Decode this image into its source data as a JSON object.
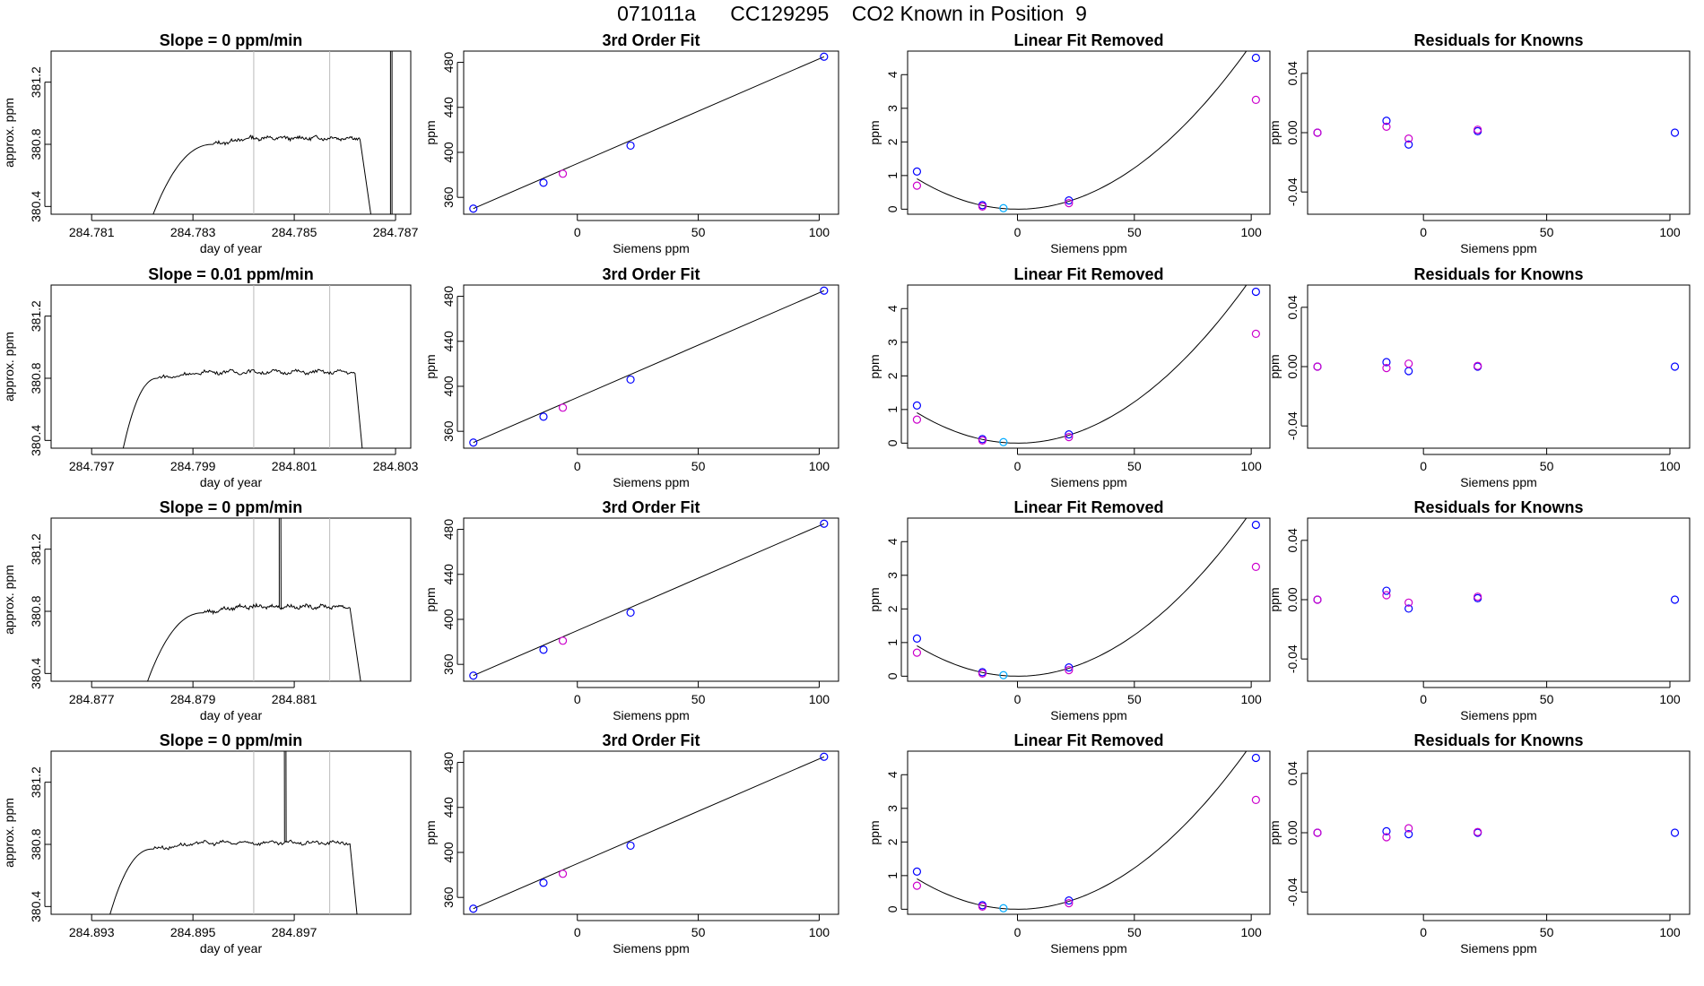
{
  "figure": {
    "title": "071011a      CC129295    CO2 Known in Position  9",
    "colors": {
      "line": "#000000",
      "known": "#0000ff",
      "second": "#cc00cc",
      "mid": "#00aaff",
      "guide": "#bbbbbb",
      "text": "#000000"
    }
  },
  "chart_data": [
    {
      "type": "line",
      "panel": "time-series",
      "row": 1,
      "title": "Slope =  0  ppm/min",
      "xlabel": "day of year",
      "ylabel": "approx. ppm",
      "xlim": [
        284.7802,
        284.7873
      ],
      "ylim": [
        380.35,
        381.4
      ],
      "xticks": [
        284.781,
        284.783,
        284.785,
        284.787
      ],
      "xtick_labels": [
        "284.781",
        "284.783",
        "284.785",
        "284.787"
      ],
      "yticks": [
        380.4,
        380.8,
        381.2
      ],
      "ytick_labels": [
        "380.4",
        "380.8",
        "381.2"
      ],
      "vlines": [
        284.7842,
        284.7857
      ],
      "rise": [
        284.782,
        284.7828,
        284.7834
      ],
      "plateau": [
        284.7834,
        284.7863
      ],
      "fall": [
        284.7863,
        284.7866
      ],
      "level": 380.84,
      "spikes": [
        284.7869
      ]
    },
    {
      "type": "line",
      "panel": "time-series",
      "row": 2,
      "title": "Slope =  0.01  ppm/min",
      "xlabel": "day of year",
      "ylabel": "approx. ppm",
      "xlim": [
        284.7962,
        284.8033
      ],
      "ylim": [
        380.35,
        381.4
      ],
      "xticks": [
        284.797,
        284.799,
        284.801,
        284.803
      ],
      "xtick_labels": [
        "284.797",
        "284.799",
        "284.801",
        "284.803"
      ],
      "yticks": [
        380.4,
        380.8,
        381.2
      ],
      "ytick_labels": [
        "380.4",
        "380.8",
        "381.2"
      ],
      "vlines": [
        284.8002,
        284.8017
      ],
      "rise": [
        284.7975,
        284.798,
        284.7983
      ],
      "plateau": [
        284.7983,
        284.8022
      ],
      "fall": [
        284.8022,
        284.8024
      ],
      "level": 380.84,
      "spikes": []
    },
    {
      "type": "line",
      "panel": "time-series",
      "row": 3,
      "title": "Slope =  0  ppm/min",
      "xlabel": "day of year",
      "ylabel": "approx. ppm",
      "xlim": [
        284.8762,
        284.8833
      ],
      "ylim": [
        380.35,
        381.4
      ],
      "xticks": [
        284.877,
        284.879,
        284.881
      ],
      "xtick_labels": [
        "284.877",
        "284.879",
        "284.881"
      ],
      "yticks": [
        380.4,
        380.8,
        381.2
      ],
      "ytick_labels": [
        "380.4",
        "380.8",
        "381.2"
      ],
      "vlines": [
        284.8802,
        284.8817
      ],
      "rise": [
        284.8779,
        284.8786,
        284.8792
      ],
      "plateau": [
        284.8792,
        284.8821
      ],
      "fall": [
        284.8821,
        284.8824
      ],
      "level": 380.83,
      "spikes": [
        284.8807
      ]
    },
    {
      "type": "line",
      "panel": "time-series",
      "row": 4,
      "title": "Slope =  0  ppm/min",
      "xlabel": "day of year",
      "ylabel": "approx. ppm",
      "xlim": [
        284.8922,
        284.8993
      ],
      "ylim": [
        380.35,
        381.4
      ],
      "xticks": [
        284.893,
        284.895,
        284.897
      ],
      "xtick_labels": [
        "284.893",
        "284.895",
        "284.897"
      ],
      "yticks": [
        380.4,
        380.8,
        381.2
      ],
      "ytick_labels": [
        "380.4",
        "380.8",
        "381.2"
      ],
      "vlines": [
        284.8962,
        284.8977
      ],
      "rise": [
        284.8932,
        284.8938,
        284.8942
      ],
      "plateau": [
        284.8942,
        284.8981
      ],
      "fall": [
        284.8981,
        284.8983
      ],
      "level": 380.81,
      "spikes": [
        284.8968
      ]
    },
    {
      "type": "scatter",
      "panel": "fit",
      "row": 1,
      "title": "3rd Order Fit",
      "xlabel": "Siemens ppm",
      "ylabel": "ppm",
      "xlim": [
        -47,
        108
      ],
      "ylim": [
        345,
        490
      ],
      "xticks": [
        0,
        50,
        100
      ],
      "yticks": [
        360,
        400,
        440,
        480
      ],
      "line": [
        [
          -43,
          350
        ],
        [
          102,
          485
        ]
      ],
      "points": [
        {
          "x": -43,
          "y": 350,
          "c": "known"
        },
        {
          "x": -14,
          "y": 373,
          "c": "known"
        },
        {
          "x": -6,
          "y": 381,
          "c": "second"
        },
        {
          "x": 22,
          "y": 406,
          "c": "known"
        },
        {
          "x": 102,
          "y": 485,
          "c": "known"
        }
      ]
    },
    {
      "type": "scatter",
      "panel": "fit",
      "row": 2,
      "title": "3rd Order Fit",
      "xlabel": "Siemens ppm",
      "ylabel": "ppm",
      "xlim": [
        -47,
        108
      ],
      "ylim": [
        345,
        490
      ],
      "xticks": [
        0,
        50,
        100
      ],
      "yticks": [
        360,
        400,
        440,
        480
      ],
      "line": [
        [
          -43,
          350
        ],
        [
          102,
          485
        ]
      ],
      "points": [
        {
          "x": -43,
          "y": 350,
          "c": "known"
        },
        {
          "x": -14,
          "y": 373,
          "c": "known"
        },
        {
          "x": -6,
          "y": 381,
          "c": "second"
        },
        {
          "x": 22,
          "y": 406,
          "c": "known"
        },
        {
          "x": 102,
          "y": 485,
          "c": "known"
        }
      ]
    },
    {
      "type": "scatter",
      "panel": "fit",
      "row": 3,
      "title": "3rd Order Fit",
      "xlabel": "Siemens ppm",
      "ylabel": "ppm",
      "xlim": [
        -47,
        108
      ],
      "ylim": [
        345,
        490
      ],
      "xticks": [
        0,
        50,
        100
      ],
      "yticks": [
        360,
        400,
        440,
        480
      ],
      "line": [
        [
          -43,
          350
        ],
        [
          102,
          485
        ]
      ],
      "points": [
        {
          "x": -43,
          "y": 350,
          "c": "known"
        },
        {
          "x": -14,
          "y": 373,
          "c": "known"
        },
        {
          "x": -6,
          "y": 381,
          "c": "second"
        },
        {
          "x": 22,
          "y": 406,
          "c": "known"
        },
        {
          "x": 102,
          "y": 485,
          "c": "known"
        }
      ]
    },
    {
      "type": "scatter",
      "panel": "fit",
      "row": 4,
      "title": "3rd Order Fit",
      "xlabel": "Siemens ppm",
      "ylabel": "ppm",
      "xlim": [
        -47,
        108
      ],
      "ylim": [
        345,
        490
      ],
      "xticks": [
        0,
        50,
        100
      ],
      "yticks": [
        360,
        400,
        440,
        480
      ],
      "line": [
        [
          -43,
          350
        ],
        [
          102,
          485
        ]
      ],
      "points": [
        {
          "x": -43,
          "y": 350,
          "c": "known"
        },
        {
          "x": -14,
          "y": 373,
          "c": "known"
        },
        {
          "x": -6,
          "y": 381,
          "c": "second"
        },
        {
          "x": 22,
          "y": 406,
          "c": "known"
        },
        {
          "x": 102,
          "y": 485,
          "c": "known"
        }
      ]
    },
    {
      "type": "scatter",
      "panel": "linear-removed",
      "row": 1,
      "title": "Linear Fit Removed",
      "xlabel": "Siemens ppm",
      "ylabel": "ppm",
      "xlim": [
        -47,
        108
      ],
      "ylim": [
        -0.15,
        4.7
      ],
      "xticks": [
        0,
        50,
        100
      ],
      "yticks": [
        0,
        1,
        2,
        3,
        4
      ],
      "curve": {
        "a": 0.00049,
        "h": 0,
        "k": 0,
        "from": -43,
        "to": 102
      },
      "points": [
        {
          "x": -43,
          "y": 1.12,
          "c": "known"
        },
        {
          "x": -43,
          "y": 0.7,
          "c": "second"
        },
        {
          "x": -15,
          "y": 0.12,
          "c": "known"
        },
        {
          "x": -15,
          "y": 0.08,
          "c": "second"
        },
        {
          "x": -6,
          "y": 0.03,
          "c": "mid"
        },
        {
          "x": 22,
          "y": 0.26,
          "c": "known"
        },
        {
          "x": 22,
          "y": 0.18,
          "c": "second"
        },
        {
          "x": 102,
          "y": 4.5,
          "c": "known"
        },
        {
          "x": 102,
          "y": 3.25,
          "c": "second"
        }
      ]
    },
    {
      "type": "scatter",
      "panel": "linear-removed",
      "row": 2,
      "title": "Linear Fit Removed",
      "xlabel": "Siemens ppm",
      "ylabel": "ppm",
      "xlim": [
        -47,
        108
      ],
      "ylim": [
        -0.15,
        4.7
      ],
      "xticks": [
        0,
        50,
        100
      ],
      "yticks": [
        0,
        1,
        2,
        3,
        4
      ],
      "curve": {
        "a": 0.00049,
        "h": 0,
        "k": 0,
        "from": -43,
        "to": 102
      },
      "points": [
        {
          "x": -43,
          "y": 1.12,
          "c": "known"
        },
        {
          "x": -43,
          "y": 0.7,
          "c": "second"
        },
        {
          "x": -15,
          "y": 0.12,
          "c": "known"
        },
        {
          "x": -15,
          "y": 0.08,
          "c": "second"
        },
        {
          "x": -6,
          "y": 0.03,
          "c": "mid"
        },
        {
          "x": 22,
          "y": 0.26,
          "c": "known"
        },
        {
          "x": 22,
          "y": 0.18,
          "c": "second"
        },
        {
          "x": 102,
          "y": 4.5,
          "c": "known"
        },
        {
          "x": 102,
          "y": 3.25,
          "c": "second"
        }
      ]
    },
    {
      "type": "scatter",
      "panel": "linear-removed",
      "row": 3,
      "title": "Linear Fit Removed",
      "xlabel": "Siemens ppm",
      "ylabel": "ppm",
      "xlim": [
        -47,
        108
      ],
      "ylim": [
        -0.15,
        4.7
      ],
      "xticks": [
        0,
        50,
        100
      ],
      "yticks": [
        0,
        1,
        2,
        3,
        4
      ],
      "curve": {
        "a": 0.00049,
        "h": 0,
        "k": 0,
        "from": -43,
        "to": 102
      },
      "points": [
        {
          "x": -43,
          "y": 1.12,
          "c": "known"
        },
        {
          "x": -43,
          "y": 0.7,
          "c": "second"
        },
        {
          "x": -15,
          "y": 0.12,
          "c": "known"
        },
        {
          "x": -15,
          "y": 0.08,
          "c": "second"
        },
        {
          "x": -6,
          "y": 0.03,
          "c": "mid"
        },
        {
          "x": 22,
          "y": 0.26,
          "c": "known"
        },
        {
          "x": 22,
          "y": 0.18,
          "c": "second"
        },
        {
          "x": 102,
          "y": 4.5,
          "c": "known"
        },
        {
          "x": 102,
          "y": 3.25,
          "c": "second"
        }
      ]
    },
    {
      "type": "scatter",
      "panel": "linear-removed",
      "row": 4,
      "title": "Linear Fit Removed",
      "xlabel": "Siemens ppm",
      "ylabel": "ppm",
      "xlim": [
        -47,
        108
      ],
      "ylim": [
        -0.15,
        4.7
      ],
      "xticks": [
        0,
        50,
        100
      ],
      "yticks": [
        0,
        1,
        2,
        3,
        4
      ],
      "curve": {
        "a": 0.00049,
        "h": 0,
        "k": 0,
        "from": -43,
        "to": 102
      },
      "points": [
        {
          "x": -43,
          "y": 1.12,
          "c": "known"
        },
        {
          "x": -43,
          "y": 0.7,
          "c": "second"
        },
        {
          "x": -15,
          "y": 0.12,
          "c": "known"
        },
        {
          "x": -15,
          "y": 0.08,
          "c": "second"
        },
        {
          "x": -6,
          "y": 0.03,
          "c": "mid"
        },
        {
          "x": 22,
          "y": 0.26,
          "c": "known"
        },
        {
          "x": 22,
          "y": 0.18,
          "c": "second"
        },
        {
          "x": 102,
          "y": 4.5,
          "c": "known"
        },
        {
          "x": 102,
          "y": 3.25,
          "c": "second"
        }
      ]
    },
    {
      "type": "scatter",
      "panel": "residuals",
      "row": 1,
      "title": "Residuals for Knowns",
      "xlabel": "Siemens ppm",
      "ylabel": "ppm",
      "xlim": [
        -47,
        108
      ],
      "ylim": [
        -0.055,
        0.055
      ],
      "xticks": [
        0,
        50,
        100
      ],
      "yticks": [
        -0.04,
        0,
        0.04
      ],
      "ytick_labels": [
        "-0.04",
        "0.00",
        "0.04"
      ],
      "points": [
        {
          "x": -43,
          "y": 0,
          "c": "known"
        },
        {
          "x": -43,
          "y": 0,
          "c": "second"
        },
        {
          "x": -15,
          "y": 0.008,
          "c": "known"
        },
        {
          "x": -15,
          "y": 0.004,
          "c": "second"
        },
        {
          "x": -6,
          "y": -0.008,
          "c": "known"
        },
        {
          "x": -6,
          "y": -0.004,
          "c": "second"
        },
        {
          "x": 22,
          "y": 0.001,
          "c": "known"
        },
        {
          "x": 22,
          "y": 0.002,
          "c": "second"
        },
        {
          "x": 102,
          "y": 0,
          "c": "known"
        }
      ]
    },
    {
      "type": "scatter",
      "panel": "residuals",
      "row": 2,
      "title": "Residuals for Knowns",
      "xlabel": "Siemens ppm",
      "ylabel": "ppm",
      "xlim": [
        -47,
        108
      ],
      "ylim": [
        -0.055,
        0.055
      ],
      "xticks": [
        0,
        50,
        100
      ],
      "yticks": [
        -0.04,
        0,
        0.04
      ],
      "ytick_labels": [
        "-0.04",
        "0.00",
        "0.04"
      ],
      "points": [
        {
          "x": -43,
          "y": 0,
          "c": "known"
        },
        {
          "x": -43,
          "y": 0,
          "c": "second"
        },
        {
          "x": -15,
          "y": 0.003,
          "c": "known"
        },
        {
          "x": -15,
          "y": -0.001,
          "c": "second"
        },
        {
          "x": -6,
          "y": -0.003,
          "c": "known"
        },
        {
          "x": -6,
          "y": 0.002,
          "c": "second"
        },
        {
          "x": 22,
          "y": 0,
          "c": "known"
        },
        {
          "x": 22,
          "y": 0.0005,
          "c": "second"
        },
        {
          "x": 102,
          "y": 0,
          "c": "known"
        }
      ]
    },
    {
      "type": "scatter",
      "panel": "residuals",
      "row": 3,
      "title": "Residuals for Knowns",
      "xlabel": "Siemens ppm",
      "ylabel": "ppm",
      "xlim": [
        -47,
        108
      ],
      "ylim": [
        -0.055,
        0.055
      ],
      "xticks": [
        0,
        50,
        100
      ],
      "yticks": [
        -0.04,
        0,
        0.04
      ],
      "ytick_labels": [
        "-0.04",
        "0.00",
        "0.04"
      ],
      "points": [
        {
          "x": -43,
          "y": 0,
          "c": "known"
        },
        {
          "x": -43,
          "y": 0,
          "c": "second"
        },
        {
          "x": -15,
          "y": 0.006,
          "c": "known"
        },
        {
          "x": -15,
          "y": 0.003,
          "c": "second"
        },
        {
          "x": -6,
          "y": -0.006,
          "c": "known"
        },
        {
          "x": -6,
          "y": -0.002,
          "c": "second"
        },
        {
          "x": 22,
          "y": 0.001,
          "c": "known"
        },
        {
          "x": 22,
          "y": 0.002,
          "c": "second"
        },
        {
          "x": 102,
          "y": 0,
          "c": "known"
        }
      ]
    },
    {
      "type": "scatter",
      "panel": "residuals",
      "row": 4,
      "title": "Residuals for Knowns",
      "xlabel": "Siemens ppm",
      "ylabel": "ppm",
      "xlim": [
        -47,
        108
      ],
      "ylim": [
        -0.055,
        0.055
      ],
      "xticks": [
        0,
        50,
        100
      ],
      "yticks": [
        -0.04,
        0,
        0.04
      ],
      "ytick_labels": [
        "-0.04",
        "0.00",
        "0.04"
      ],
      "points": [
        {
          "x": -43,
          "y": 0,
          "c": "known"
        },
        {
          "x": -43,
          "y": 0,
          "c": "second"
        },
        {
          "x": -15,
          "y": 0.001,
          "c": "known"
        },
        {
          "x": -15,
          "y": -0.003,
          "c": "second"
        },
        {
          "x": -6,
          "y": -0.001,
          "c": "known"
        },
        {
          "x": -6,
          "y": 0.003,
          "c": "second"
        },
        {
          "x": 22,
          "y": 0,
          "c": "known"
        },
        {
          "x": 22,
          "y": 0.0005,
          "c": "second"
        },
        {
          "x": 102,
          "y": 0,
          "c": "known"
        }
      ]
    }
  ]
}
